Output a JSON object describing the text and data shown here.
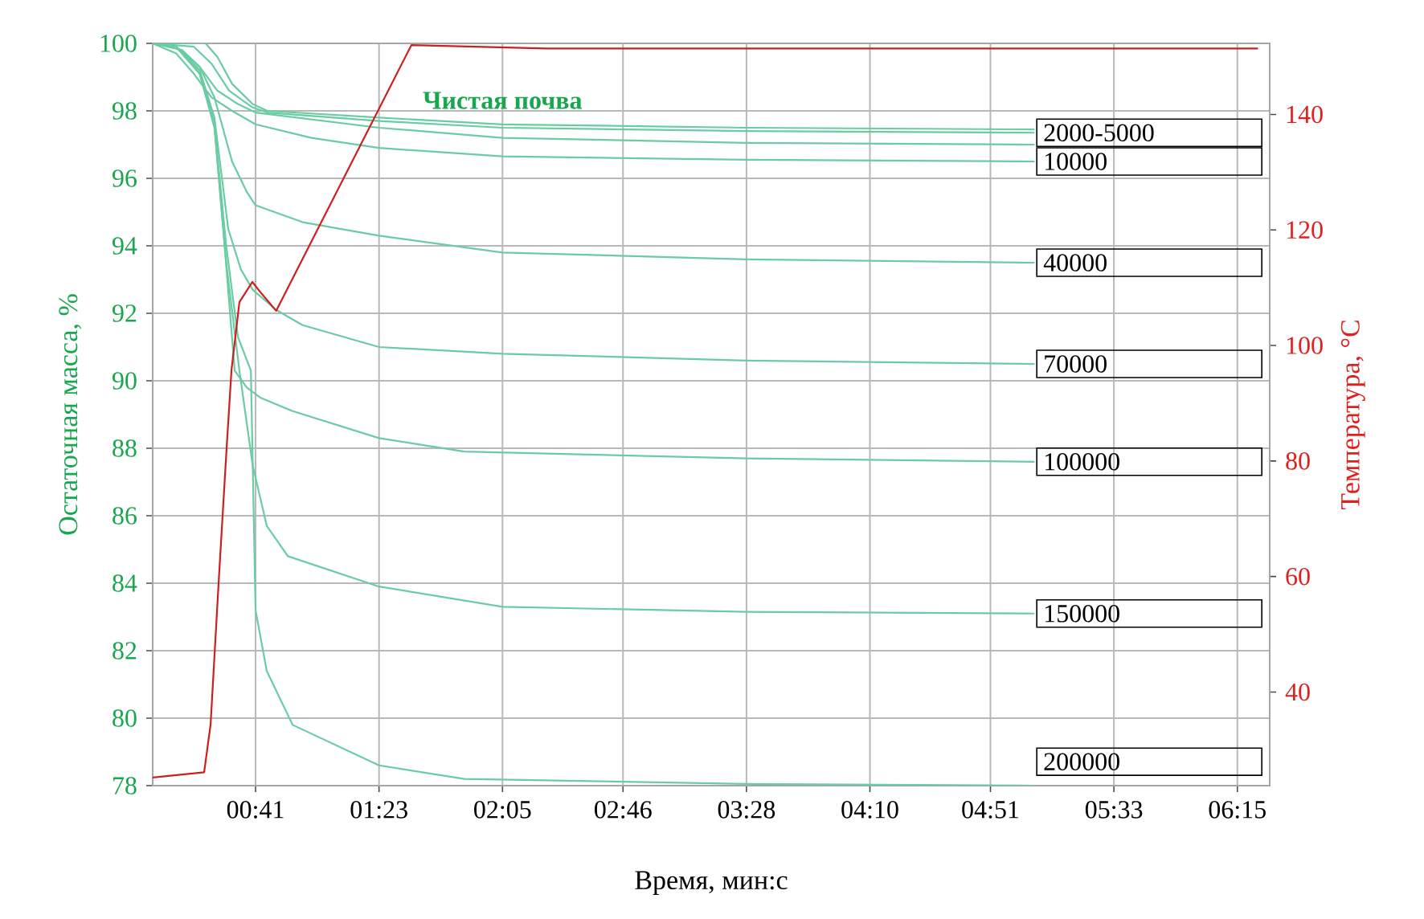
{
  "chart_data": {
    "type": "line",
    "xlabel": "Время, мин:с",
    "ylabel": "Остаточная масса, %",
    "y2label": "Температура, °C",
    "xlim": [
      6,
      386
    ],
    "ylim": [
      78,
      100
    ],
    "y2lim": [
      23.8,
      152.3
    ],
    "xticks": [
      {
        "value": 41,
        "label": "00:41"
      },
      {
        "value": 83,
        "label": "01:23"
      },
      {
        "value": 125,
        "label": "02:05"
      },
      {
        "value": 166,
        "label": "02:46"
      },
      {
        "value": 208,
        "label": "03:28"
      },
      {
        "value": 250,
        "label": "04:10"
      },
      {
        "value": 291,
        "label": "04:51"
      },
      {
        "value": 333,
        "label": "05:33"
      },
      {
        "value": 375,
        "label": "06:15"
      }
    ],
    "yticks": [
      78,
      80,
      82,
      84,
      86,
      88,
      90,
      92,
      94,
      96,
      98,
      100
    ],
    "y2ticks": [
      40,
      60,
      80,
      100,
      120,
      140
    ],
    "grid": true,
    "series": [
      {
        "name": "Чистая почва",
        "color": "#6acca3",
        "x": [
          6,
          24,
          28,
          33,
          40,
          45,
          83,
          125,
          208,
          306
        ],
        "values": [
          100,
          100,
          99.6,
          98.8,
          98.2,
          98.0,
          97.8,
          97.6,
          97.5,
          97.45
        ]
      },
      {
        "name": "2000-5000",
        "color": "#6acca3",
        "x": [
          6,
          20,
          26,
          32,
          40,
          45,
          83,
          125,
          208,
          306
        ],
        "values": [
          100,
          99.9,
          99.4,
          98.6,
          98.1,
          97.95,
          97.7,
          97.5,
          97.4,
          97.35
        ]
      },
      {
        "color": "#6acca3",
        "x": [
          6,
          16,
          22,
          28,
          35,
          41,
          83,
          125,
          208,
          306
        ],
        "values": [
          100,
          99.8,
          99.3,
          98.6,
          98.2,
          97.95,
          97.5,
          97.2,
          97.05,
          97.0
        ]
      },
      {
        "name": "10000",
        "color": "#6acca3",
        "x": [
          6,
          14,
          20,
          26,
          33,
          41,
          60,
          83,
          125,
          208,
          306
        ],
        "values": [
          100,
          99.7,
          99.1,
          98.4,
          98.0,
          97.6,
          97.2,
          96.9,
          96.65,
          96.55,
          96.5
        ]
      },
      {
        "name": "40000",
        "color": "#6acca3",
        "x": [
          6,
          14,
          22,
          27,
          33,
          38,
          41,
          57,
          83,
          125,
          208,
          306
        ],
        "values": [
          100,
          99.9,
          99.3,
          98.4,
          96.5,
          95.6,
          95.2,
          94.7,
          94.3,
          93.8,
          93.6,
          93.5
        ]
      },
      {
        "name": "70000",
        "color": "#6acca3",
        "x": [
          6,
          14,
          22,
          27,
          31.7,
          36,
          40,
          48,
          57,
          83,
          125,
          208,
          306
        ],
        "values": [
          100,
          99.9,
          99.2,
          97.8,
          94.5,
          93.3,
          92.7,
          92.1,
          91.65,
          91.0,
          90.8,
          90.6,
          90.5
        ]
      },
      {
        "name": "100000",
        "color": "#6acca3",
        "x": [
          6,
          14,
          22,
          27,
          30,
          33.9,
          38,
          42.6,
          53.6,
          83,
          112,
          208,
          306
        ],
        "values": [
          100,
          99.9,
          99.2,
          97.6,
          94.5,
          90.3,
          89.8,
          89.5,
          89.1,
          88.3,
          87.9,
          87.7,
          87.6
        ]
      },
      {
        "name": "150000",
        "color": "#6acca3",
        "x": [
          6,
          14,
          22,
          27,
          31,
          35.5,
          40,
          44.8,
          52,
          83,
          125,
          208,
          306
        ],
        "values": [
          100,
          99.9,
          99.1,
          97.5,
          93.5,
          90.3,
          87.5,
          85.7,
          84.8,
          83.9,
          83.3,
          83.15,
          83.1
        ]
      },
      {
        "name": "200000",
        "color": "#6acca3",
        "x": [
          6,
          14,
          22,
          27,
          31,
          35,
          39.4,
          41,
          44.8,
          53.6,
          83,
          112,
          208,
          306
        ],
        "values": [
          100,
          99.9,
          99.1,
          97.6,
          94,
          91.3,
          90.3,
          83.2,
          81.4,
          79.8,
          78.6,
          78.2,
          78.05,
          78.0
        ]
      },
      {
        "color": "#cc1f1f",
        "axis": "y2",
        "x": [
          6,
          23.5,
          25.7,
          28.4,
          31.1,
          32.8,
          35.5,
          39.9,
          43,
          48,
          70,
          94,
          140,
          382
        ],
        "values": [
          25.2,
          26.1,
          34.4,
          58.7,
          81.8,
          95.7,
          107.5,
          111,
          109,
          106,
          128,
          152,
          151.4,
          151.4
        ]
      }
    ]
  }
}
